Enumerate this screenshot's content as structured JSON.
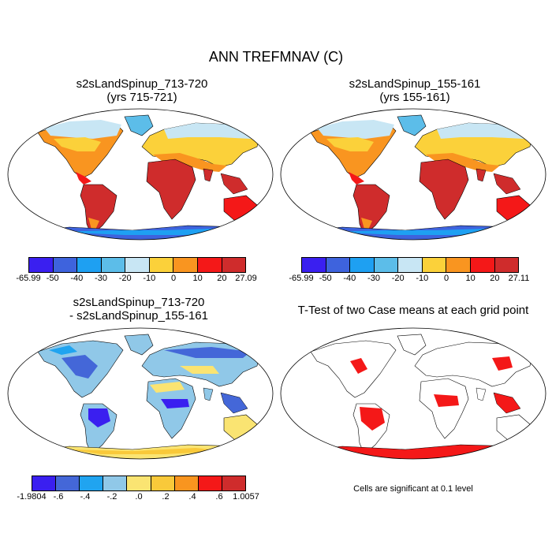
{
  "title": "ANN TREFMNAV (C)",
  "panels": [
    {
      "id": "p1",
      "title_line1": "s2sLandSpinup_713-720",
      "title_line2": "(yrs 715-721)"
    },
    {
      "id": "p2",
      "title_line1": "s2sLandSpinup_155-161",
      "title_line2": "(yrs 155-161)"
    },
    {
      "id": "p3",
      "title_line1": "s2sLandSpinup_713-720",
      "title_line2": "- s2sLandSpinup_155-161"
    },
    {
      "id": "p4",
      "title_line1": "T-Test of two Case means at each grid point",
      "title_line2": ""
    }
  ],
  "colorbars": {
    "abs_colors": [
      "#3a1ff0",
      "#3e63dd",
      "#1ea0f2",
      "#5cbde9",
      "#c8e6f4",
      "#fbd13a",
      "#f99520",
      "#f41818",
      "#cf2c2c"
    ],
    "diff_colors": [
      "#3a1ff0",
      "#4467d8",
      "#20a4f0",
      "#90c8e8",
      "#fae472",
      "#f9c93a",
      "#f9951f",
      "#f41818",
      "#cf2c2c"
    ],
    "p1_labels": [
      "-65.99",
      "-50",
      "-40",
      "-30",
      "-20",
      "-10",
      "0",
      "10",
      "20",
      "27.09"
    ],
    "p2_labels": [
      "-65.99",
      "-50",
      "-40",
      "-30",
      "-20",
      "-10",
      "0",
      "10",
      "20",
      "27.11"
    ],
    "p3_labels": [
      "-1.9804",
      "-.6",
      "-.4",
      "-.2",
      ".0",
      ".2",
      ".4",
      ".6",
      "1.0057"
    ]
  },
  "significance_note": "Cells are significant at 0.1 level"
}
